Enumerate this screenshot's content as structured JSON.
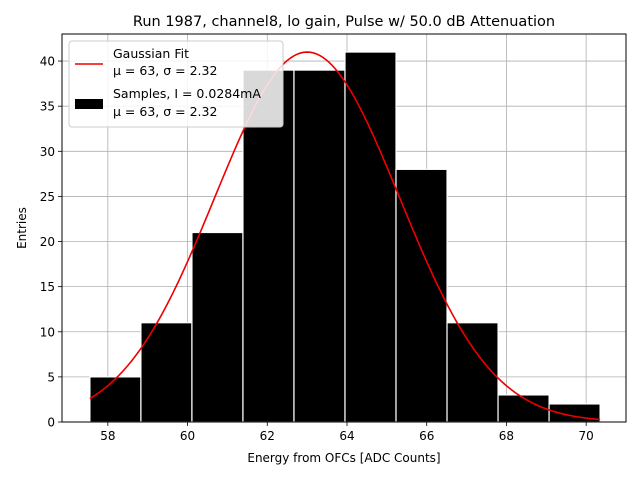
{
  "chart_data": {
    "type": "histogram",
    "title": "Run 1987, channel8, lo gain, Pulse w/ 50.0 dB Attenuation",
    "xlabel": "Energy from OFCs [ADC Counts]",
    "ylabel": "Entries",
    "xlim": [
      56.85,
      71.0
    ],
    "ylim": [
      0,
      43
    ],
    "xticks": [
      58,
      60,
      62,
      64,
      66,
      68,
      70
    ],
    "xtick_labels": [
      "58",
      "60",
      "62",
      "64",
      "66",
      "68",
      "70"
    ],
    "yticks": [
      0,
      5,
      10,
      15,
      20,
      25,
      30,
      35,
      40
    ],
    "ytick_labels": [
      "0",
      "5",
      "10",
      "15",
      "20",
      "25",
      "30",
      "35",
      "40"
    ],
    "grid": true,
    "bins": [
      {
        "left": 57.55,
        "right": 58.83,
        "count": 5
      },
      {
        "left": 58.83,
        "right": 60.11,
        "count": 11
      },
      {
        "left": 60.11,
        "right": 61.39,
        "count": 21
      },
      {
        "left": 61.39,
        "right": 62.67,
        "count": 39
      },
      {
        "left": 62.67,
        "right": 63.95,
        "count": 39
      },
      {
        "left": 63.95,
        "right": 65.23,
        "count": 41
      },
      {
        "left": 65.23,
        "right": 66.51,
        "count": 28
      },
      {
        "left": 66.51,
        "right": 67.79,
        "count": 11
      },
      {
        "left": 67.79,
        "right": 69.07,
        "count": 3
      },
      {
        "left": 69.07,
        "right": 70.35,
        "count": 2
      }
    ],
    "fit": {
      "type": "gaussian",
      "mu": 63.0,
      "sigma": 2.32,
      "amplitude": 41.0,
      "x_range": [
        57.55,
        70.35
      ],
      "color": "#ee0000"
    },
    "bar_color": "#000000",
    "bar_edge_color": "#ffffff",
    "legend": {
      "placement": "top-left",
      "entries": [
        {
          "name": "fit",
          "marker": "line",
          "color": "#ee0000",
          "lines": [
            "Gaussian Fit",
            "μ = 63, σ = 2.32"
          ]
        },
        {
          "name": "samples",
          "marker": "box",
          "color": "#000000",
          "lines": [
            "Samples, I = 0.0284mA",
            "μ = 63, σ = 2.32"
          ]
        }
      ]
    }
  }
}
